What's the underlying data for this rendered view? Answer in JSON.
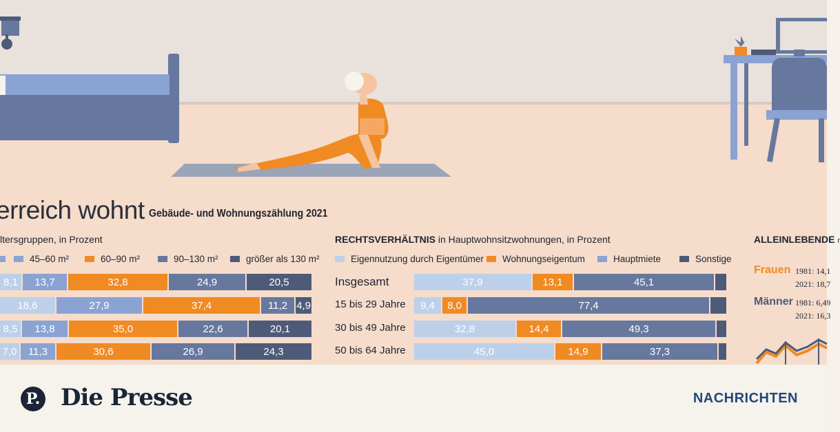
{
  "title": "erreich wohnt",
  "subtitle": "Gebäude- und Wohnungszählung 2021",
  "colors": {
    "light": "#bcd0ea",
    "mid": "#8aa3d3",
    "orange": "#f08a22",
    "slate": "#67789f",
    "dark": "#4d5b78"
  },
  "chart_data": [
    {
      "type": "bar",
      "orientation": "horizontal-stacked",
      "header_bold": "",
      "header_rest": "ltersgruppen, in Prozent",
      "series": [
        {
          "name": "",
          "color": "#8aa3d3"
        },
        {
          "name": "45–60 m²",
          "color": "#8aa3d3"
        },
        {
          "name": "60–90 m²",
          "color": "#f08a22"
        },
        {
          "name": "90–130 m²",
          "color": "#67789f"
        },
        {
          "name": "größer als 130 m²",
          "color": "#4d5b78"
        }
      ],
      "rows": [
        {
          "label": "",
          "values": [
            "8,1",
            "13,7",
            "32,8",
            "24,9",
            "20,5"
          ],
          "classes": [
            "c1",
            "c2",
            "c3",
            "c4",
            "c5"
          ],
          "widths": [
            33,
            66,
            146,
            113,
            94
          ]
        },
        {
          "label": "",
          "values": [
            "18,6",
            "27,9",
            "37,4",
            "11,2",
            "4,9"
          ],
          "classes": [
            "c1",
            "c2",
            "c3",
            "c4",
            "c5"
          ],
          "widths": [
            82,
            126,
            171,
            50,
            23
          ]
        },
        {
          "label": "",
          "values": [
            "8,5",
            "13,8",
            "35,0",
            "22,6",
            "20,1"
          ],
          "classes": [
            "c1",
            "c2",
            "c3",
            "c4",
            "c5"
          ],
          "widths": [
            32,
            68,
            159,
            102,
            91
          ]
        },
        {
          "label": "",
          "values": [
            "7,0",
            "11,3",
            "30,6",
            "26,9",
            "24,3"
          ],
          "classes": [
            "c1",
            "c2",
            "c3",
            "c4",
            "c5"
          ],
          "widths": [
            30,
            52,
            138,
            122,
            110
          ]
        }
      ]
    },
    {
      "type": "bar",
      "orientation": "horizontal-stacked",
      "header_bold": "RECHTSVERHÄLTNIS",
      "header_rest": " in Hauptwohnsitzwohnungen, in Prozent",
      "series": [
        {
          "name": "Eigennutzung durch Eigentümer",
          "color": "#bcd0ea"
        },
        {
          "name": "Wohnungseigentum",
          "color": "#f08a22"
        },
        {
          "name": "Hauptmiete",
          "color": "#8aa3d3"
        },
        {
          "name": "Sonstige",
          "color": "#4d5b78"
        }
      ],
      "rows": [
        {
          "label": "Insgesamt",
          "values": [
            "37,9",
            "13,1",
            "45,1",
            ""
          ],
          "classes": [
            "c1",
            "c3",
            "c4",
            "c5"
          ]
        },
        {
          "label": "15 bis 29 Jahre",
          "values": [
            "9,4",
            "8,0",
            "77,4",
            ""
          ],
          "classes": [
            "c1",
            "c3",
            "c4",
            "c5"
          ]
        },
        {
          "label": "30 bis 49 Jahre",
          "values": [
            "32,8",
            "14,4",
            "49,3",
            ""
          ],
          "classes": [
            "c1",
            "c3",
            "c4",
            "c5"
          ]
        },
        {
          "label": "50 bis 64 Jahre",
          "values": [
            "45,0",
            "14,9",
            "37,3",
            ""
          ],
          "classes": [
            "c1",
            "c3",
            "c4",
            "c5"
          ]
        }
      ]
    }
  ],
  "alleinlebende": {
    "header": "ALLEINLEBENDE",
    "header_tail": "r",
    "frauen": "Frauen",
    "frauen_1981": "1981: 14,1",
    "frauen_2021": "2021: 18,7",
    "maenner": "Männer",
    "maenner_1981": "1981: 6,49",
    "maenner_2021": "2021: 16,3"
  },
  "footer": {
    "logo_mark": "P.",
    "logo_text": "Die Presse",
    "section": "NACHRICHTEN"
  }
}
